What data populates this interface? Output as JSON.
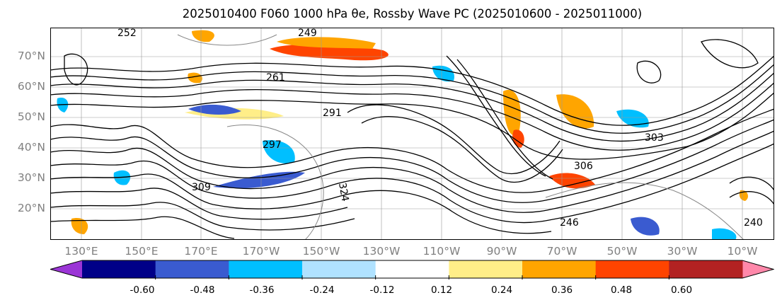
{
  "title": "2025010400 F060 1000 hPa θe, Rossby Wave PC (2025010600 - 2025011000)",
  "map": {
    "lat_labels": [
      "70°N",
      "60°N",
      "50°N",
      "40°N",
      "30°N",
      "20°N"
    ],
    "lon_labels": [
      "130°E",
      "150°E",
      "170°E",
      "170°W",
      "150°W",
      "130°W",
      "110°W",
      "90°W",
      "70°W",
      "50°W",
      "30°W",
      "10°W"
    ],
    "contour_labels": [
      "249",
      "252",
      "261",
      "291",
      "297",
      "309",
      "324",
      "306",
      "303",
      "246",
      "240"
    ]
  },
  "colorbar": {
    "colors": [
      "#9b35d6",
      "#000088",
      "#3a5bd0",
      "#00bfff",
      "#b0e2ff",
      "#ffffff",
      "#ffee88",
      "#ffa500",
      "#ff4400",
      "#b22222",
      "#ff88aa"
    ],
    "tick_labels": [
      "-0.60",
      "-0.48",
      "-0.36",
      "-0.24",
      "-0.12",
      "0.12",
      "0.24",
      "0.36",
      "0.48",
      "0.60"
    ]
  }
}
